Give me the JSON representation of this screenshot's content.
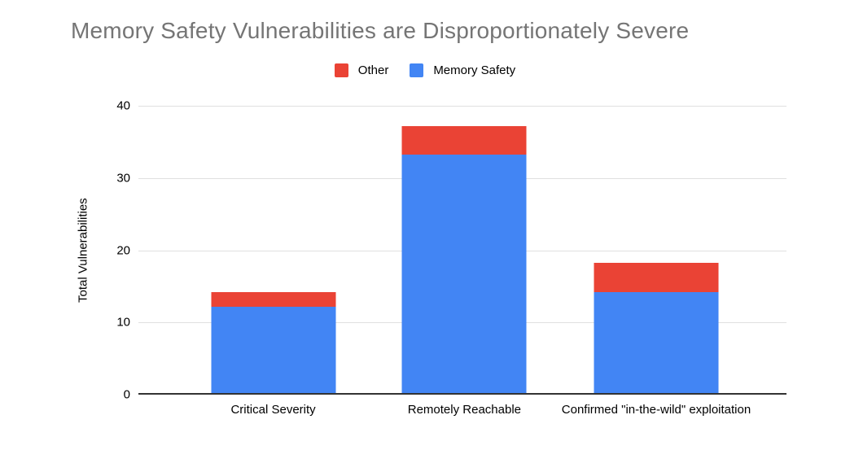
{
  "chart_data": {
    "type": "bar",
    "stacked": true,
    "title": "Memory Safety Vulnerabilities are Disproportionately Severe",
    "title_color": "#757575",
    "categories": [
      "Critical Severity",
      "Remotely Reachable",
      "Confirmed \"in-the-wild\" exploitation"
    ],
    "series": [
      {
        "name": "Memory Safety",
        "color": "#4285F4",
        "values": [
          12,
          33,
          14
        ]
      },
      {
        "name": "Other",
        "color": "#EA4335",
        "values": [
          2,
          4,
          4
        ]
      }
    ],
    "legend": [
      {
        "label": "Other",
        "color": "#EA4335"
      },
      {
        "label": "Memory Safety",
        "color": "#4285F4"
      }
    ],
    "legend_position": "top",
    "xlabel": "",
    "ylabel": "Total Vulnerabilities",
    "ylim": [
      0,
      40
    ],
    "yticks": [
      0,
      10,
      20,
      30,
      40
    ],
    "grid": true,
    "axis_color": "#333333",
    "gridline_color": "#e0e0e0",
    "background": "#ffffff"
  }
}
